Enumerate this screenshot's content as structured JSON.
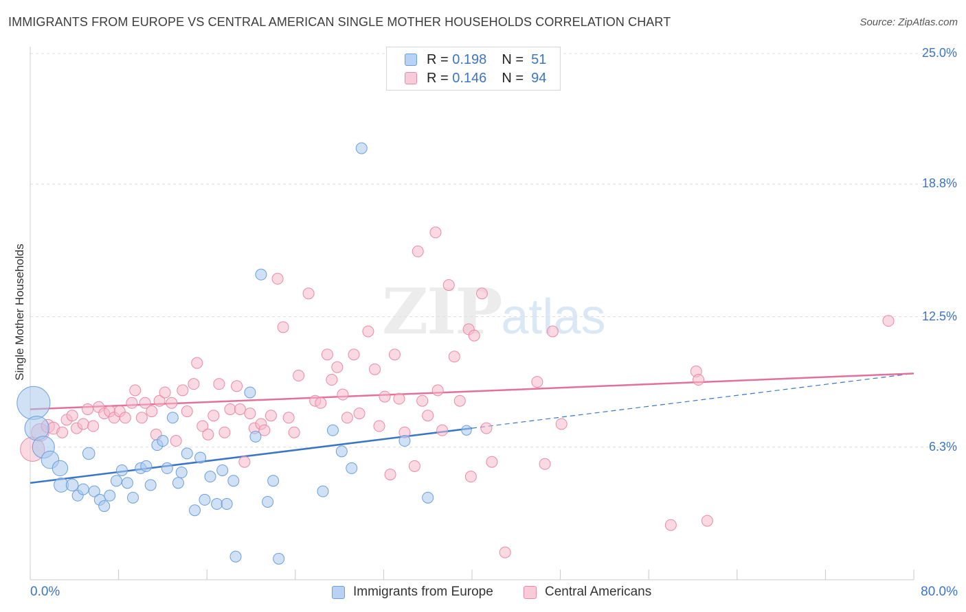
{
  "header": {
    "title": "IMMIGRANTS FROM EUROPE VS CENTRAL AMERICAN SINGLE MOTHER HOUSEHOLDS CORRELATION CHART",
    "source": "Source: ZipAtlas.com"
  },
  "watermark": {
    "zip": "ZIP",
    "atlas": "atlas"
  },
  "legend": {
    "rows": [
      {
        "r_label": "R =",
        "r_value": "0.198",
        "n_label": "N =",
        "n_value": "51"
      },
      {
        "r_label": "R =",
        "r_value": "0.146",
        "n_label": "N =",
        "n_value": "94"
      }
    ]
  },
  "colors": {
    "blue_fill": "#a9c9ef",
    "blue_stroke": "#6a9fdc",
    "blue_line": "#3a76c6",
    "pink_fill": "#f6b9cc",
    "pink_stroke": "#e98aa8",
    "pink_line": "#e2709a",
    "axis_text": "#3b75c4",
    "grid": "#dedede"
  },
  "chart_data": {
    "type": "scatter",
    "title": "IMMIGRANTS FROM EUROPE VS CENTRAL AMERICAN SINGLE MOTHER HOUSEHOLDS CORRELATION CHART",
    "xlabel": "",
    "ylabel": "Single Mother Households",
    "xlim": [
      0,
      80
    ],
    "ylim": [
      0,
      25
    ],
    "x_tick_labels": [
      "0.0%",
      "80.0%"
    ],
    "y_ticks": [
      6.3,
      12.5,
      18.8,
      25.0
    ],
    "y_tick_labels": [
      "6.3%",
      "12.5%",
      "18.8%",
      "25.0%"
    ],
    "grid": true,
    "legend_position": "bottom",
    "series": [
      {
        "name": "Immigrants from Europe",
        "color": "#a9c9ef",
        "trend": {
          "x0": 0,
          "y0": 4.6,
          "x1": 40,
          "y1": 7.2,
          "dashed_to_x": 80,
          "dashed_to_y": 9.8
        },
        "points": [
          [
            0.3,
            8.4,
            3.0
          ],
          [
            0.6,
            7.2,
            2.2
          ],
          [
            1.2,
            6.3,
            2.0
          ],
          [
            1.8,
            5.7,
            1.6
          ],
          [
            2.7,
            5.3,
            1.4
          ],
          [
            2.8,
            4.5,
            1.3
          ],
          [
            3.8,
            4.5,
            1.1
          ],
          [
            4.3,
            4.0,
            1.0
          ],
          [
            4.8,
            4.3,
            1.0
          ],
          [
            5.3,
            6.0,
            1.1
          ],
          [
            5.8,
            4.2,
            1.0
          ],
          [
            6.3,
            3.8,
            1.0
          ],
          [
            6.7,
            3.5,
            1.0
          ],
          [
            7.2,
            4.0,
            1.0
          ],
          [
            7.8,
            4.7,
            1.0
          ],
          [
            8.3,
            5.2,
            1.0
          ],
          [
            8.8,
            4.6,
            1.0
          ],
          [
            9.3,
            3.9,
            1.0
          ],
          [
            10.0,
            5.3,
            1.0
          ],
          [
            10.5,
            5.4,
            1.0
          ],
          [
            10.9,
            4.5,
            1.0
          ],
          [
            11.5,
            6.4,
            1.0
          ],
          [
            12.0,
            6.6,
            1.0
          ],
          [
            12.4,
            5.3,
            1.0
          ],
          [
            12.9,
            7.7,
            1.0
          ],
          [
            13.4,
            4.6,
            1.0
          ],
          [
            13.7,
            5.1,
            1.0
          ],
          [
            14.2,
            6.0,
            1.0
          ],
          [
            14.9,
            3.3,
            1.0
          ],
          [
            15.4,
            5.8,
            1.0
          ],
          [
            15.8,
            3.8,
            1.0
          ],
          [
            16.3,
            4.9,
            1.0
          ],
          [
            16.9,
            3.6,
            1.0
          ],
          [
            17.4,
            5.2,
            1.0
          ],
          [
            17.8,
            3.6,
            1.0
          ],
          [
            18.4,
            4.7,
            1.0
          ],
          [
            18.6,
            1.1,
            1.0
          ],
          [
            19.9,
            8.9,
            1.0
          ],
          [
            20.4,
            6.8,
            1.0
          ],
          [
            20.9,
            14.5,
            1.0
          ],
          [
            21.5,
            3.7,
            1.0
          ],
          [
            22.0,
            4.7,
            1.0
          ],
          [
            22.5,
            1.0,
            1.0
          ],
          [
            26.5,
            4.2,
            1.0
          ],
          [
            27.4,
            7.1,
            1.0
          ],
          [
            28.2,
            6.1,
            1.0
          ],
          [
            29.1,
            5.3,
            1.0
          ],
          [
            30.0,
            20.5,
            1.0
          ],
          [
            33.9,
            6.6,
            1.0
          ],
          [
            36.0,
            3.9,
            1.0
          ],
          [
            39.5,
            7.1,
            0.9
          ]
        ]
      },
      {
        "name": "Central Americans",
        "color": "#f6b9cc",
        "trend": {
          "x0": 0,
          "y0": 8.1,
          "x1": 80,
          "y1": 9.8
        },
        "points": [
          [
            0.2,
            6.2,
            2.2
          ],
          [
            0.9,
            7.0,
            1.6
          ],
          [
            1.6,
            7.3,
            1.2
          ],
          [
            2.1,
            7.2,
            1.1
          ],
          [
            2.9,
            7.0,
            1.0
          ],
          [
            3.3,
            7.6,
            1.0
          ],
          [
            3.8,
            7.8,
            1.0
          ],
          [
            4.2,
            7.2,
            1.0
          ],
          [
            4.8,
            7.4,
            1.0
          ],
          [
            5.2,
            8.1,
            1.0
          ],
          [
            5.7,
            7.3,
            1.0
          ],
          [
            6.2,
            8.2,
            1.0
          ],
          [
            6.7,
            7.9,
            1.0
          ],
          [
            7.2,
            8.0,
            1.0
          ],
          [
            7.6,
            7.7,
            1.0
          ],
          [
            8.1,
            8.0,
            1.0
          ],
          [
            8.6,
            7.7,
            1.0
          ],
          [
            9.2,
            8.4,
            1.0
          ],
          [
            9.5,
            9.0,
            1.0
          ],
          [
            10.1,
            7.7,
            1.0
          ],
          [
            10.4,
            8.4,
            1.0
          ],
          [
            11.0,
            8.0,
            1.0
          ],
          [
            11.4,
            6.9,
            1.0
          ],
          [
            11.7,
            8.5,
            1.0
          ],
          [
            12.2,
            8.9,
            1.0
          ],
          [
            12.8,
            8.4,
            1.0
          ],
          [
            13.2,
            6.6,
            1.0
          ],
          [
            13.8,
            9.0,
            1.0
          ],
          [
            14.2,
            8.0,
            1.0
          ],
          [
            14.8,
            9.3,
            1.0
          ],
          [
            15.1,
            10.3,
            1.0
          ],
          [
            15.6,
            7.3,
            1.0
          ],
          [
            16.1,
            6.9,
            1.0
          ],
          [
            16.6,
            7.8,
            1.0
          ],
          [
            17.1,
            9.3,
            1.0
          ],
          [
            17.6,
            7.0,
            1.0
          ],
          [
            18.1,
            8.1,
            1.0
          ],
          [
            18.7,
            9.2,
            1.0
          ],
          [
            19.0,
            8.1,
            1.0
          ],
          [
            19.4,
            5.6,
            1.0
          ],
          [
            19.9,
            7.9,
            1.0
          ],
          [
            20.3,
            7.2,
            1.0
          ],
          [
            20.9,
            7.4,
            1.0
          ],
          [
            21.2,
            7.1,
            1.0
          ],
          [
            21.8,
            7.8,
            1.0
          ],
          [
            22.4,
            14.3,
            1.0
          ],
          [
            22.9,
            12.0,
            1.0
          ],
          [
            23.4,
            7.7,
            1.0
          ],
          [
            23.9,
            7.0,
            1.0
          ],
          [
            24.3,
            9.7,
            1.0
          ],
          [
            25.2,
            13.6,
            1.0
          ],
          [
            25.8,
            8.5,
            1.0
          ],
          [
            26.3,
            8.4,
            1.0
          ],
          [
            26.9,
            10.7,
            1.0
          ],
          [
            27.3,
            9.5,
            1.0
          ],
          [
            27.8,
            10.1,
            1.0
          ],
          [
            28.3,
            8.8,
            1.0
          ],
          [
            28.7,
            7.7,
            1.0
          ],
          [
            29.3,
            10.7,
            1.0
          ],
          [
            29.8,
            7.9,
            1.0
          ],
          [
            30.6,
            11.8,
            1.0
          ],
          [
            31.2,
            10.0,
            1.0
          ],
          [
            31.6,
            7.3,
            1.0
          ],
          [
            32.1,
            8.7,
            1.0
          ],
          [
            32.6,
            5.0,
            1.0
          ],
          [
            33.0,
            10.7,
            1.0
          ],
          [
            33.4,
            8.6,
            1.0
          ],
          [
            33.9,
            7.0,
            1.0
          ],
          [
            34.8,
            5.4,
            1.0
          ],
          [
            35.1,
            15.6,
            1.0
          ],
          [
            35.5,
            8.5,
            1.0
          ],
          [
            36.0,
            7.8,
            1.0
          ],
          [
            36.7,
            16.5,
            1.0
          ],
          [
            36.9,
            9.0,
            1.0
          ],
          [
            37.3,
            7.1,
            1.0
          ],
          [
            37.9,
            14.0,
            1.0
          ],
          [
            38.4,
            10.6,
            1.0
          ],
          [
            38.9,
            8.5,
            1.0
          ],
          [
            39.7,
            11.9,
            1.0
          ],
          [
            39.9,
            4.9,
            1.0
          ],
          [
            40.2,
            11.6,
            1.0
          ],
          [
            40.9,
            13.6,
            1.0
          ],
          [
            41.3,
            7.2,
            1.0
          ],
          [
            41.8,
            5.6,
            1.0
          ],
          [
            43.0,
            1.3,
            1.0
          ],
          [
            45.9,
            9.4,
            1.0
          ],
          [
            46.6,
            5.5,
            1.0
          ],
          [
            47.3,
            11.8,
            1.0
          ],
          [
            48.1,
            7.4,
            1.0
          ],
          [
            58.0,
            2.6,
            1.0
          ],
          [
            60.3,
            9.9,
            1.0
          ],
          [
            60.5,
            9.5,
            1.0
          ],
          [
            61.3,
            2.8,
            1.0
          ],
          [
            77.7,
            12.3,
            1.0
          ]
        ]
      }
    ]
  }
}
